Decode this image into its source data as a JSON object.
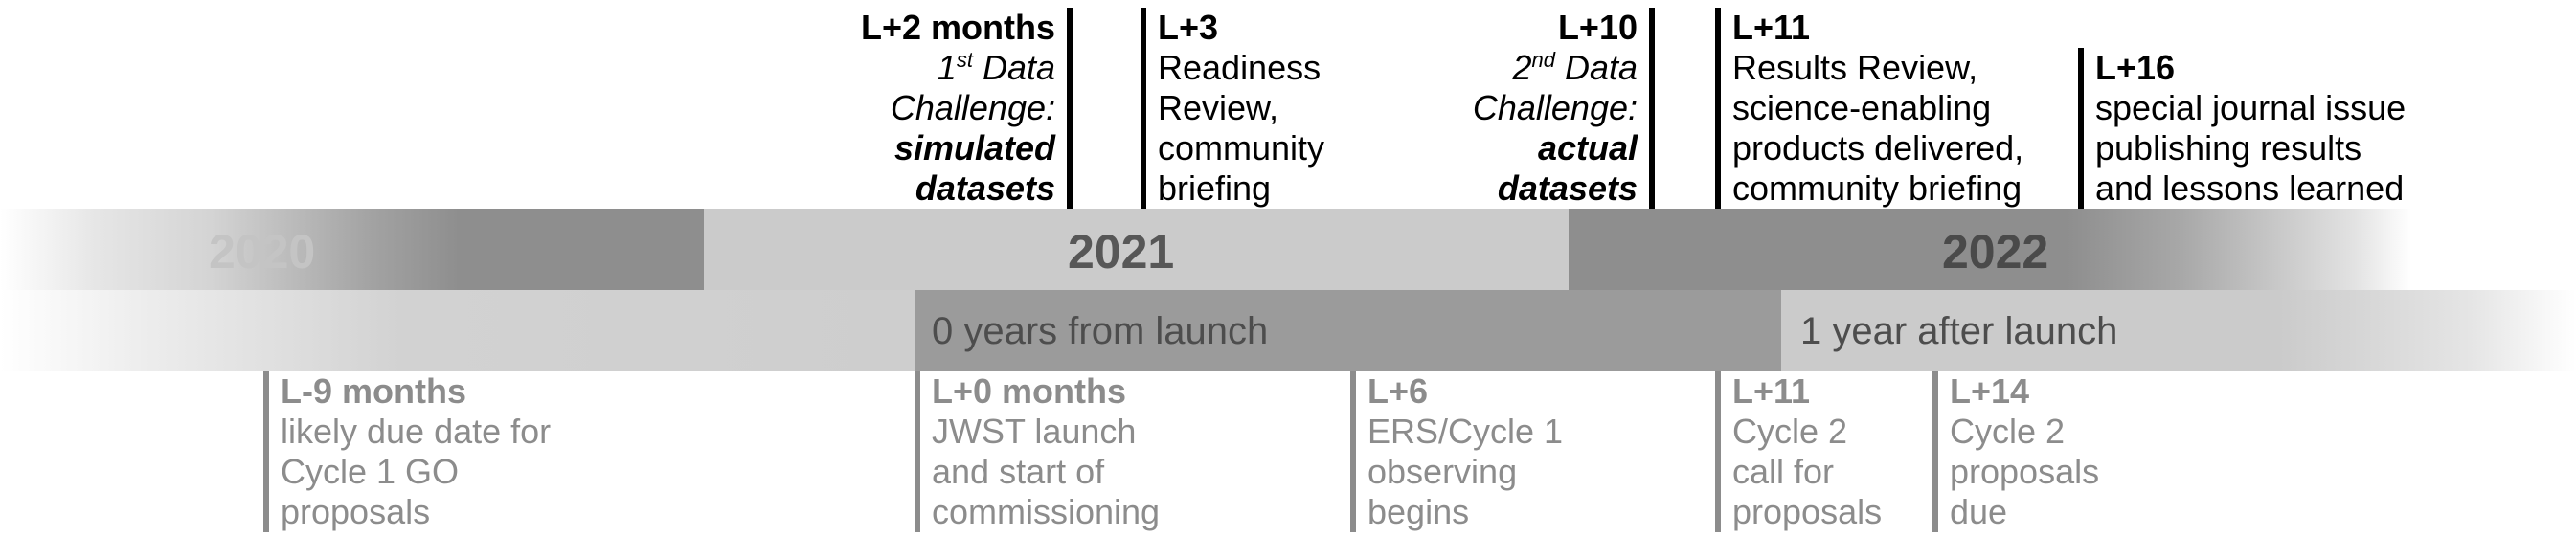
{
  "timeline": {
    "years": [
      "2020",
      "2021",
      "2022"
    ],
    "launch_bands": [
      "0 years from launch",
      "1 year after launch"
    ]
  },
  "milestones_top": [
    {
      "heading": "L+2 months",
      "lines": [
        "1",
        "st",
        " Data",
        "Challenge:",
        "simulated",
        "datasets"
      ]
    },
    {
      "heading": "L+3",
      "lines": [
        "Readiness",
        "Review,",
        "community",
        "briefing"
      ]
    },
    {
      "heading": "L+10",
      "lines": [
        "2",
        "nd",
        " Data",
        "Challenge:",
        "actual",
        "datasets"
      ]
    },
    {
      "heading": "L+11",
      "lines": [
        "Results Review,",
        "science-enabling",
        "products delivered,",
        "community briefing"
      ]
    },
    {
      "heading": "L+16",
      "lines": [
        "special journal issue",
        "publishing results",
        "and lessons learned"
      ]
    }
  ],
  "milestones_bottom": [
    {
      "heading": "L-9 months",
      "lines": [
        "likely due date for",
        "Cycle 1 GO",
        "proposals"
      ]
    },
    {
      "heading": "L+0 months",
      "lines": [
        "JWST launch",
        "and start of",
        "commissioning"
      ]
    },
    {
      "heading": "L+6",
      "lines": [
        "ERS/Cycle 1",
        "observing",
        "begins"
      ]
    },
    {
      "heading": "L+11",
      "lines": [
        "Cycle 2",
        "call for",
        "proposals"
      ]
    },
    {
      "heading": "L+14",
      "lines": [
        "Cycle 2",
        "proposals",
        "due"
      ]
    }
  ]
}
